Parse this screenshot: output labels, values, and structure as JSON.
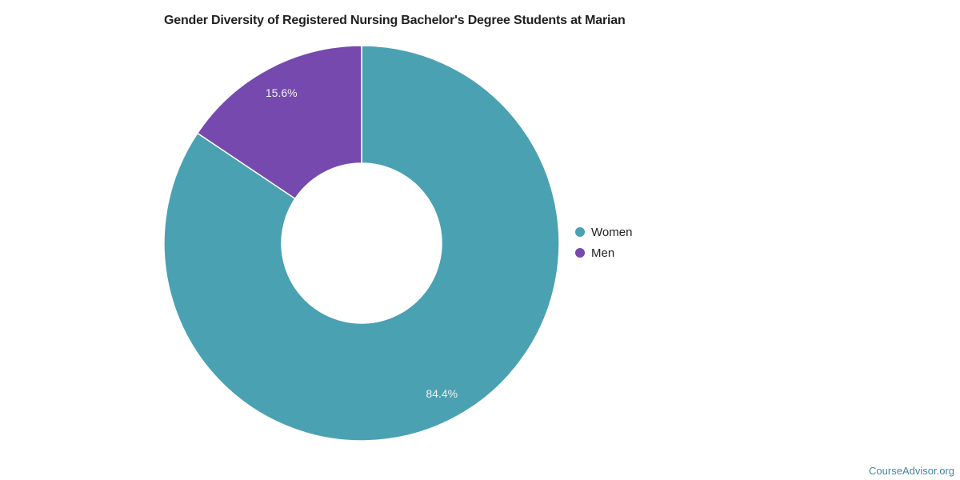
{
  "title": {
    "text": "Gender Diversity of Registered Nursing Bachelor's Degree Students at Marian"
  },
  "source": {
    "text": "CourseAdvisor.org"
  },
  "colors": {
    "background": "#FFFFFF",
    "title_text": "#212121",
    "legend_text": "#222222",
    "slice_label_text": "#F4F3F4",
    "slice_separator": "#FFFFFF",
    "women_teal": "#4AA1B2",
    "men_purple": "#7549AE",
    "source_link": "#4484A8"
  },
  "legend": {
    "position": "right",
    "items": [
      {
        "label": "Women"
      },
      {
        "label": "Men"
      }
    ]
  },
  "chart_data": {
    "type": "pie",
    "subtype": "donut",
    "title": "Gender Diversity of Registered Nursing Bachelor's Degree Students at Marian",
    "categories": [
      "Women",
      "Men"
    ],
    "values": [
      84.4,
      15.6
    ],
    "unit": "%",
    "slices": [
      {
        "name": "Women",
        "value": 84.4,
        "label": "84.4%",
        "color": "#4AA1B2"
      },
      {
        "name": "Men",
        "value": 15.6,
        "label": "15.6%",
        "color": "#7549AE"
      }
    ],
    "start_angle_deg": 0,
    "direction": "clockwise",
    "inner_radius_ratio": 0.405,
    "legend_position": "right",
    "grid": false,
    "source": "CourseAdvisor.org"
  }
}
